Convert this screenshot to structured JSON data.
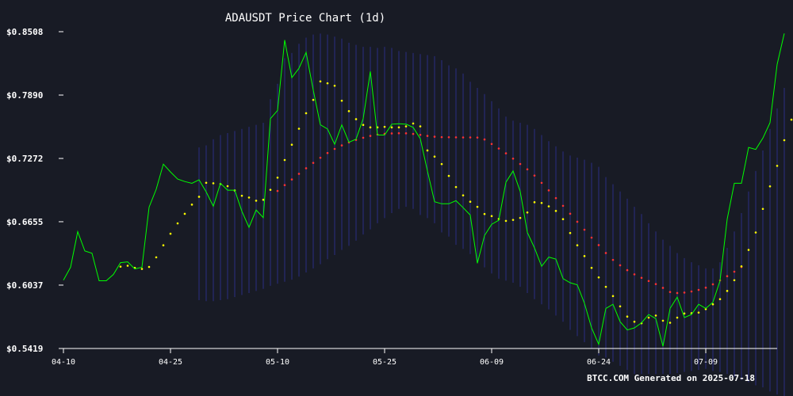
{
  "chart_data": {
    "type": "line",
    "title": "ADAUSDT Price Chart (1d)",
    "xlabel": "",
    "ylabel": "",
    "ylim": [
      0.5419,
      0.8508
    ],
    "y_ticks": [
      "$0.8508",
      "$0.7890",
      "$0.7272",
      "$0.6655",
      "$0.6037",
      "$0.5419"
    ],
    "x_ticks": [
      "04-10",
      "04-25",
      "05-10",
      "05-25",
      "06-09",
      "06-24",
      "07-09"
    ],
    "x_start": "2025-04-10",
    "colors": {
      "price": "#00ff00",
      "ma": "#ff3333",
      "sar": "#ffff00",
      "bands": "#3a3ad0",
      "background": "#181b25",
      "axis": "#ffffff"
    },
    "series": [
      {
        "style": "line",
        "values": [
          0.6085,
          0.6211,
          0.6558,
          0.637,
          0.6347,
          0.6079,
          0.6079,
          0.6141,
          0.6256,
          0.6264,
          0.6194,
          0.6211,
          0.6797,
          0.6972,
          0.7217,
          0.714,
          0.7071,
          0.7047,
          0.7029,
          0.7064,
          0.6946,
          0.6806,
          0.703,
          0.6963,
          0.6963,
          0.6757,
          0.66,
          0.677,
          0.6695,
          0.766,
          0.774,
          0.8426,
          0.806,
          0.8151,
          0.8306,
          0.794,
          0.76,
          0.756,
          0.741,
          0.76,
          0.743,
          0.746,
          0.766,
          0.812,
          0.75,
          0.75,
          0.7606,
          0.761,
          0.7606,
          0.7575,
          0.7465,
          0.715,
          0.685,
          0.683,
          0.683,
          0.686,
          0.6792,
          0.672,
          0.625,
          0.652,
          0.663,
          0.667,
          0.704,
          0.715,
          0.695,
          0.655,
          0.64,
          0.622,
          0.631,
          0.629,
          0.61,
          0.606,
          0.604,
          0.586,
          0.562,
          0.546,
          0.581,
          0.585,
          0.568,
          0.56,
          0.562,
          0.567,
          0.575,
          0.571,
          0.544,
          0.581,
          0.592,
          0.572,
          0.575,
          0.585,
          0.581,
          0.587,
          0.608,
          0.668,
          0.703,
          0.703,
          0.738,
          0.736,
          0.747,
          0.762,
          0.819,
          0.849
        ]
      },
      {
        "style": "dots",
        "values": [
          null,
          null,
          null,
          null,
          null,
          null,
          null,
          null,
          null,
          null,
          null,
          null,
          null,
          null,
          null,
          null,
          null,
          null,
          null,
          null,
          null,
          null,
          null,
          null,
          null,
          null,
          null,
          null,
          null,
          null,
          0.6955,
          0.7012,
          0.7067,
          0.7122,
          0.7176,
          0.7229,
          0.7279,
          0.7325,
          0.7365,
          0.7399,
          0.7428,
          0.7453,
          0.7474,
          0.7492,
          0.7505,
          0.7512,
          0.7516,
          0.7518,
          0.7517,
          0.7511,
          0.7502,
          0.7492,
          0.7484,
          0.748,
          0.7479,
          0.7478,
          0.7477,
          0.7477,
          0.7476,
          0.7457,
          0.7413,
          0.7369,
          0.7322,
          0.727,
          0.7218,
          0.7166,
          0.7105,
          0.7034,
          0.6961,
          0.6885,
          0.681,
          0.6733,
          0.6655,
          0.6577,
          0.65,
          0.6427,
          0.635,
          0.6283,
          0.623,
          0.6183,
          0.6142,
          0.6108,
          0.6077,
          0.6047,
          0.601,
          0.597,
          0.596,
          0.5964,
          0.5975,
          0.599,
          0.6012,
          0.6045,
          0.6083,
          0.6124,
          0.6168,
          0.6213
        ]
      },
      {
        "style": "dots",
        "values": [
          null,
          null,
          null,
          null,
          null,
          null,
          null,
          null,
          0.6217,
          0.6226,
          0.6205,
          0.6195,
          0.6214,
          0.6308,
          0.6425,
          0.6538,
          0.6639,
          0.6732,
          0.6822,
          0.6898,
          0.7035,
          0.703,
          0.7023,
          0.7002,
          0.696,
          0.6908,
          0.6891,
          0.686,
          0.6869,
          0.6966,
          0.7085,
          0.7257,
          0.7406,
          0.7562,
          0.7713,
          0.7843,
          0.8023,
          0.8005,
          0.7981,
          0.7835,
          0.7733,
          0.7655,
          0.7599,
          0.7575,
          0.7575,
          0.758,
          0.7575,
          0.7575,
          0.7585,
          0.7613,
          0.7585,
          0.735,
          0.729,
          0.7217,
          0.7102,
          0.6993,
          0.6912,
          0.685,
          0.68,
          0.673,
          0.671,
          0.6682,
          0.6663,
          0.6673,
          0.6692,
          0.6745,
          0.6845,
          0.6838,
          0.6805,
          0.676,
          0.668,
          0.6545,
          0.6425,
          0.632,
          0.6205,
          0.6112,
          0.602,
          0.593,
          0.583,
          0.573,
          0.568,
          0.5665,
          0.572,
          0.574,
          0.569,
          0.567,
          0.572,
          0.576,
          0.5763,
          0.5769,
          0.5803,
          0.585,
          0.59,
          0.598,
          0.6085,
          0.622,
          0.638,
          0.655,
          0.678,
          0.7,
          0.72,
          0.745,
          0.765
        ]
      },
      {
        "style": "bands",
        "upper": [
          null,
          null,
          null,
          null,
          null,
          null,
          null,
          null,
          null,
          null,
          null,
          null,
          null,
          null,
          null,
          null,
          null,
          null,
          null,
          0.738,
          0.74,
          0.746,
          0.75,
          0.752,
          0.754,
          0.756,
          0.758,
          0.76,
          0.762,
          0.785,
          0.8,
          0.825,
          0.83,
          0.839,
          0.845,
          0.848,
          0.849,
          0.848,
          0.846,
          0.844,
          0.84,
          0.838,
          0.836,
          0.836,
          0.835,
          0.836,
          0.835,
          0.832,
          0.831,
          0.83,
          0.829,
          0.828,
          0.827,
          0.823,
          0.818,
          0.815,
          0.81,
          0.802,
          0.796,
          0.79,
          0.783,
          0.776,
          0.768,
          0.764,
          0.762,
          0.76,
          0.756,
          0.75,
          0.744,
          0.739,
          0.734,
          0.73,
          0.728,
          0.726,
          0.723,
          0.719,
          0.709,
          0.702,
          0.695,
          0.688,
          0.68,
          0.673,
          0.664,
          0.656,
          0.648,
          0.642,
          0.635,
          0.63,
          0.626,
          0.623,
          0.62,
          0.62,
          0.626,
          0.64,
          0.656,
          0.674,
          0.695,
          0.715,
          0.735,
          0.756,
          0.776,
          0.796
        ],
        "lower": [
          null,
          null,
          null,
          null,
          null,
          null,
          null,
          null,
          null,
          null,
          null,
          null,
          null,
          null,
          null,
          null,
          null,
          null,
          null,
          0.589,
          0.588,
          0.588,
          0.589,
          0.59,
          0.592,
          0.594,
          0.596,
          0.598,
          0.6,
          0.603,
          0.605,
          0.607,
          0.609,
          0.612,
          0.616,
          0.62,
          0.624,
          0.629,
          0.633,
          0.638,
          0.642,
          0.647,
          0.653,
          0.658,
          0.664,
          0.669,
          0.674,
          0.678,
          0.68,
          0.678,
          0.672,
          0.669,
          0.664,
          0.655,
          0.651,
          0.643,
          0.639,
          0.634,
          0.626,
          0.621,
          0.615,
          0.61,
          0.608,
          0.606,
          0.602,
          0.596,
          0.59,
          0.585,
          0.58,
          0.574,
          0.568,
          0.56,
          0.554,
          0.548,
          0.542,
          0.535,
          0.533,
          0.529,
          0.525,
          0.521,
          0.517,
          0.517,
          0.517,
          0.517,
          0.517,
          0.517,
          0.518,
          0.519,
          0.52,
          0.521,
          0.522,
          0.52,
          0.519,
          0.517,
          0.514,
          0.511,
          0.509,
          0.506,
          0.504,
          0.5,
          0.497,
          0.495
        ]
      }
    ]
  },
  "footer": "BTCC.COM Generated on 2025-07-18"
}
